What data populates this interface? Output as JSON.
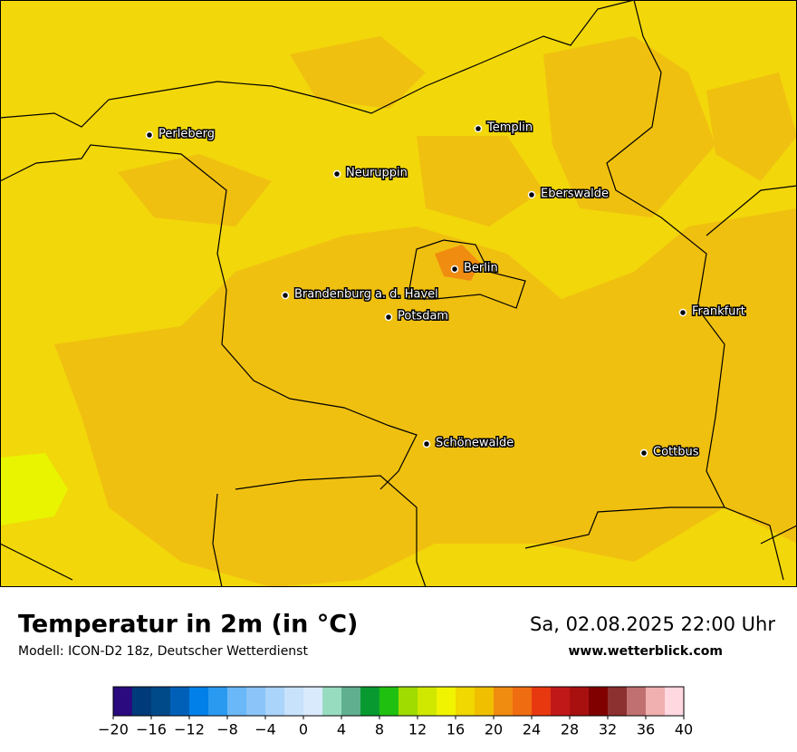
{
  "map": {
    "cities": [
      "Perleberg",
      "Templin",
      "Neuruppin",
      "Eberswalde",
      "Berlin",
      "Brandenburg a. d. Havel",
      "Potsdam",
      "Frankfurt",
      "Schönewalde",
      "Cottbus"
    ]
  },
  "footer": {
    "title": "Temperatur in 2m (in °C)",
    "subtitle": "Modell: ICON-D2 18z, Deutscher Wetterdienst",
    "datetime": "Sa, 02.08.2025 22:00 Uhr",
    "website": "www.wetterblick.com"
  },
  "colorbar": {
    "lim": [
      -20,
      40
    ],
    "colors": [
      "#2a0a7e",
      "#003a7a",
      "#004a8a",
      "#0060b8",
      "#0080e8",
      "#2a9af0",
      "#6ab8f8",
      "#8ac4f8",
      "#aad4fa",
      "#c8e2fc",
      "#d8eafc",
      "#98dcc0",
      "#60b090",
      "#089a30",
      "#20c010",
      "#a0dc00",
      "#d0e800",
      "#f0f400",
      "#f0d800",
      "#f0c000",
      "#f08c10",
      "#f06c10",
      "#e83810",
      "#c01818",
      "#a81010",
      "#800000",
      "#8c3030",
      "#c07070",
      "#f0b0b0",
      "#ffd8e0"
    ],
    "ticks": [
      {
        "value": -20,
        "label": "−20"
      },
      {
        "value": -16,
        "label": "−16"
      },
      {
        "value": -12,
        "label": "−12"
      },
      {
        "value": -8,
        "label": "−8"
      },
      {
        "value": -4,
        "label": "−4"
      },
      0,
      4,
      8,
      12,
      16,
      20,
      24,
      28,
      32,
      36,
      40
    ]
  }
}
